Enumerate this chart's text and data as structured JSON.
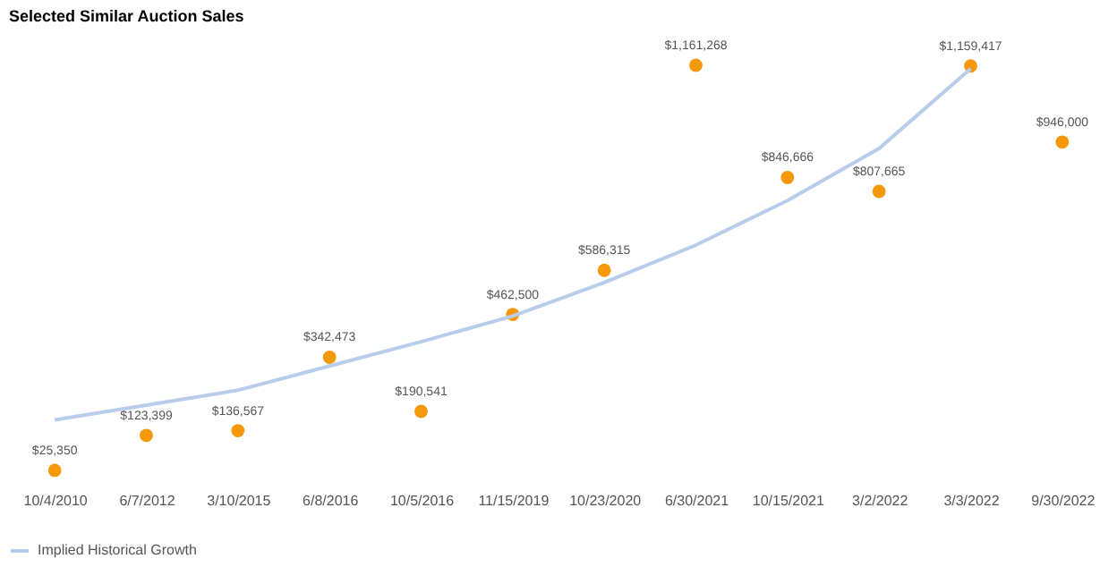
{
  "chart_data": {
    "type": "scatter",
    "title": "Selected Similar Auction Sales",
    "categories": [
      "10/4/2010",
      "6/7/2012",
      "3/10/2015",
      "6/8/2016",
      "10/5/2016",
      "11/15/2019",
      "10/23/2020",
      "6/30/2021",
      "10/15/2021",
      "3/2/2022",
      "3/3/2022",
      "9/30/2022"
    ],
    "series": [
      {
        "color": "#f5980c",
        "values": [
          25350,
          123399,
          136567,
          342473,
          190541,
          462500,
          586315,
          1161268,
          846666,
          807665,
          1159417,
          946000
        ],
        "value_labels": [
          "$25,350",
          "$123,399",
          "$136,567",
          "$342,473",
          "$190,541",
          "$462,500",
          "$586,315",
          "$1,161,268",
          "$846,666",
          "$807,665",
          "$1,159,417",
          "$946,000"
        ]
      },
      {
        "type": "line",
        "name": "Implied Historical Growth",
        "color": "#b8ccec",
        "values": [
          167000,
          208000,
          250000,
          318000,
          386000,
          458000,
          552000,
          657000,
          782000,
          928000,
          1152000,
          null
        ]
      }
    ],
    "legend": "bottom",
    "grid": false
  }
}
